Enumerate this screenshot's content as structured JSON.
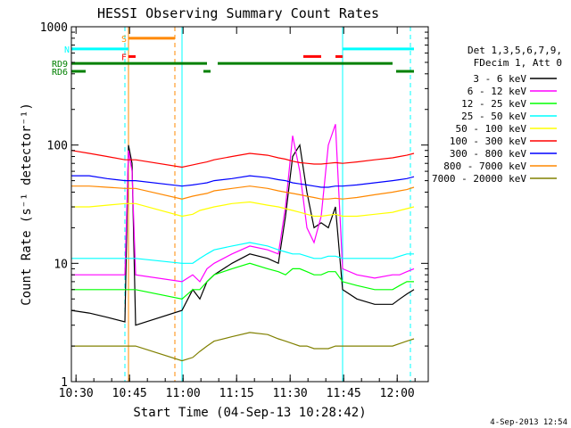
{
  "chart_data": {
    "type": "line",
    "title": "HESSI Observing Summary Count Rates",
    "xlabel": "Start Time (04-Sep-13 10:28:42)",
    "ylabel": "Count Rate (s⁻¹ detector⁻¹)",
    "x_unit": "minutes after 10:28:42",
    "xlim": [
      0,
      100
    ],
    "ylim": [
      1,
      1000
    ],
    "y_scale": "log",
    "grid": false,
    "legend_position": "right",
    "x_ticks": [
      {
        "value": 1.3,
        "label": "10:30"
      },
      {
        "value": 16.3,
        "label": "10:45"
      },
      {
        "value": 31.3,
        "label": "11:00"
      },
      {
        "value": 46.3,
        "label": "11:15"
      },
      {
        "value": 61.3,
        "label": "11:30"
      },
      {
        "value": 76.3,
        "label": "11:45"
      },
      {
        "value": 91.3,
        "label": "12:00"
      }
    ],
    "y_ticks": [
      {
        "value": 1,
        "label": "1"
      },
      {
        "value": 10,
        "label": "10"
      },
      {
        "value": 100,
        "label": "100"
      },
      {
        "value": 1000,
        "label": "1000"
      }
    ],
    "legend_header": [
      "Det 1,3,5,6,7,9,",
      "FDecim 1, Att 0"
    ],
    "series": [
      {
        "name": "3 - 6 keV",
        "color": "#000000",
        "x": [
          0,
          5,
          10,
          15,
          16,
          17,
          18,
          31,
          34,
          36,
          38,
          40,
          45,
          50,
          55,
          58,
          60,
          62,
          64,
          66,
          68,
          70,
          72,
          74,
          76,
          80,
          85,
          90,
          92,
          94,
          96
        ],
        "y": [
          4,
          3.8,
          3.5,
          3.2,
          100,
          70,
          3,
          4,
          6,
          5,
          7,
          8,
          10,
          12,
          11,
          10,
          25,
          80,
          100,
          40,
          20,
          22,
          20,
          30,
          6,
          5,
          4.5,
          4.5,
          5,
          5.5,
          6
        ]
      },
      {
        "name": "6 - 12 keV",
        "color": "#FF00FF",
        "x": [
          0,
          5,
          10,
          15,
          16,
          17,
          18,
          31,
          34,
          36,
          38,
          40,
          45,
          50,
          55,
          58,
          60,
          62,
          64,
          66,
          68,
          70,
          72,
          74,
          76,
          80,
          85,
          90,
          92,
          94,
          96
        ],
        "y": [
          8,
          8,
          8,
          8,
          90,
          60,
          8,
          7,
          8,
          7,
          9,
          10,
          12,
          14,
          13,
          12,
          30,
          120,
          60,
          20,
          15,
          25,
          100,
          150,
          9,
          8,
          7.5,
          8,
          8,
          8.5,
          9
        ]
      },
      {
        "name": "12 - 25 keV",
        "color": "#00FF00",
        "x": [
          0,
          5,
          10,
          15,
          16,
          17,
          18,
          31,
          34,
          36,
          38,
          40,
          45,
          50,
          55,
          58,
          60,
          62,
          64,
          66,
          68,
          70,
          72,
          74,
          76,
          80,
          85,
          90,
          92,
          94,
          96
        ],
        "y": [
          6,
          6,
          6,
          6,
          6,
          6,
          6,
          5,
          6,
          6,
          7,
          8,
          9,
          10,
          9,
          8.5,
          8,
          9,
          9,
          8.5,
          8,
          8,
          8.5,
          8.5,
          7,
          6.5,
          6,
          6,
          6.5,
          7,
          7
        ]
      },
      {
        "name": "25 - 50 keV",
        "color": "#00FFFF",
        "x": [
          0,
          5,
          10,
          15,
          16,
          17,
          18,
          31,
          34,
          36,
          38,
          40,
          45,
          50,
          55,
          58,
          60,
          62,
          64,
          66,
          68,
          70,
          72,
          74,
          76,
          80,
          85,
          90,
          92,
          94,
          96
        ],
        "y": [
          11,
          11,
          11,
          11,
          11,
          11,
          11,
          10,
          10,
          11,
          12,
          13,
          14,
          15,
          14,
          13,
          12.5,
          12,
          12,
          11.5,
          11,
          11,
          11.5,
          11.5,
          11,
          11,
          11,
          11,
          11.5,
          12,
          12
        ]
      },
      {
        "name": "50 - 100 keV",
        "color": "#FFFF00",
        "x": [
          0,
          5,
          10,
          15,
          16,
          17,
          18,
          31,
          34,
          36,
          38,
          40,
          45,
          50,
          55,
          58,
          60,
          62,
          64,
          66,
          68,
          70,
          72,
          74,
          76,
          80,
          85,
          90,
          92,
          94,
          96
        ],
        "y": [
          30,
          30,
          31,
          32,
          32,
          32,
          32,
          25,
          26,
          28,
          29,
          30,
          32,
          33,
          31,
          30,
          29,
          28,
          27,
          26,
          25,
          25,
          25.5,
          26,
          25,
          25,
          26,
          27,
          28,
          29,
          30
        ]
      },
      {
        "name": "100 - 300 keV",
        "color": "#FF0000",
        "x": [
          0,
          5,
          10,
          15,
          16,
          17,
          18,
          31,
          34,
          36,
          38,
          40,
          45,
          50,
          55,
          58,
          60,
          62,
          64,
          66,
          68,
          70,
          72,
          74,
          76,
          80,
          85,
          90,
          92,
          94,
          96
        ],
        "y": [
          90,
          85,
          80,
          75,
          75,
          75,
          75,
          65,
          68,
          70,
          72,
          75,
          80,
          85,
          82,
          78,
          76,
          73,
          71,
          70,
          69,
          69,
          70,
          71,
          70,
          72,
          75,
          78,
          80,
          82,
          85
        ]
      },
      {
        "name": "300 - 800 keV",
        "color": "#0000FF",
        "x": [
          0,
          5,
          10,
          15,
          16,
          17,
          18,
          31,
          34,
          36,
          38,
          40,
          45,
          50,
          55,
          58,
          60,
          62,
          64,
          66,
          68,
          70,
          72,
          74,
          76,
          80,
          85,
          90,
          92,
          94,
          96
        ],
        "y": [
          55,
          55,
          52,
          50,
          50,
          50,
          50,
          45,
          46,
          47,
          48,
          50,
          52,
          55,
          53,
          51,
          50,
          48,
          47,
          46,
          45,
          44,
          44,
          45,
          45,
          46,
          48,
          50,
          51,
          52,
          54
        ]
      },
      {
        "name": "800 - 7000 keV",
        "color": "#FF8800",
        "x": [
          0,
          5,
          10,
          15,
          16,
          17,
          18,
          31,
          34,
          36,
          38,
          40,
          45,
          50,
          55,
          58,
          60,
          62,
          64,
          66,
          68,
          70,
          72,
          74,
          76,
          80,
          85,
          90,
          92,
          94,
          96
        ],
        "y": [
          45,
          45,
          44,
          43,
          43,
          43,
          43,
          35,
          37,
          38,
          39,
          41,
          43,
          45,
          43,
          41,
          40,
          39,
          38,
          37,
          36,
          35,
          35,
          35.5,
          35,
          36,
          38,
          40,
          41,
          42,
          44
        ]
      },
      {
        "name": "7000 - 20000 keV",
        "color": "#808000",
        "x": [
          0,
          5,
          10,
          15,
          16,
          17,
          18,
          31,
          34,
          36,
          38,
          40,
          45,
          50,
          55,
          58,
          60,
          62,
          64,
          66,
          68,
          70,
          72,
          74,
          76,
          80,
          85,
          90,
          92,
          94,
          96
        ],
        "y": [
          2,
          2,
          2,
          2,
          2,
          2,
          2,
          1.5,
          1.6,
          1.8,
          2,
          2.2,
          2.4,
          2.6,
          2.5,
          2.3,
          2.2,
          2.1,
          2,
          2,
          1.9,
          1.9,
          1.9,
          2,
          2,
          2,
          2,
          2,
          2.1,
          2.2,
          2.3
        ]
      }
    ],
    "flag_bars": [
      {
        "label": "S",
        "color": "#FF8800",
        "x_start": 16,
        "x_end": 29,
        "y": 800
      },
      {
        "label": "N",
        "color": "#00FFFF",
        "x_start": 0,
        "x_end": 16,
        "y": 650
      },
      {
        "label": "",
        "color": "#00FFFF",
        "x_start": 76,
        "x_end": 96,
        "y": 650
      },
      {
        "label": "F",
        "color": "#FF0000",
        "x_start": 16,
        "x_end": 18,
        "y": 560
      },
      {
        "label": "",
        "color": "#FF0000",
        "x_start": 65,
        "x_end": 70,
        "y": 560
      },
      {
        "label": "",
        "color": "#FF0000",
        "x_start": 74,
        "x_end": 76,
        "y": 560
      },
      {
        "label": "RD9",
        "color": "#008000",
        "x_start": 0,
        "x_end": 38,
        "y": 490
      },
      {
        "label": "",
        "color": "#008000",
        "x_start": 41,
        "x_end": 90,
        "y": 490
      },
      {
        "label": "RD6",
        "color": "#008000",
        "x_start": 0,
        "x_end": 4,
        "y": 420
      },
      {
        "label": "",
        "color": "#008000",
        "x_start": 37,
        "x_end": 39,
        "y": 420
      },
      {
        "label": "",
        "color": "#008000",
        "x_start": 91,
        "x_end": 96,
        "y": 420
      }
    ],
    "vertical_markers": [
      {
        "x": 0,
        "color": "#00FFFF",
        "style": "solid"
      },
      {
        "x": 15,
        "color": "#00FFFF",
        "style": "dashed"
      },
      {
        "x": 16,
        "color": "#FF8800",
        "style": "solid"
      },
      {
        "x": 29,
        "color": "#FF8800",
        "style": "dashed"
      },
      {
        "x": 31,
        "color": "#00FFFF",
        "style": "solid"
      },
      {
        "x": 76,
        "color": "#00FFFF",
        "style": "solid"
      },
      {
        "x": 95,
        "color": "#00FFFF",
        "style": "dashed"
      }
    ],
    "footer": "4-Sep-2013 12:54"
  }
}
